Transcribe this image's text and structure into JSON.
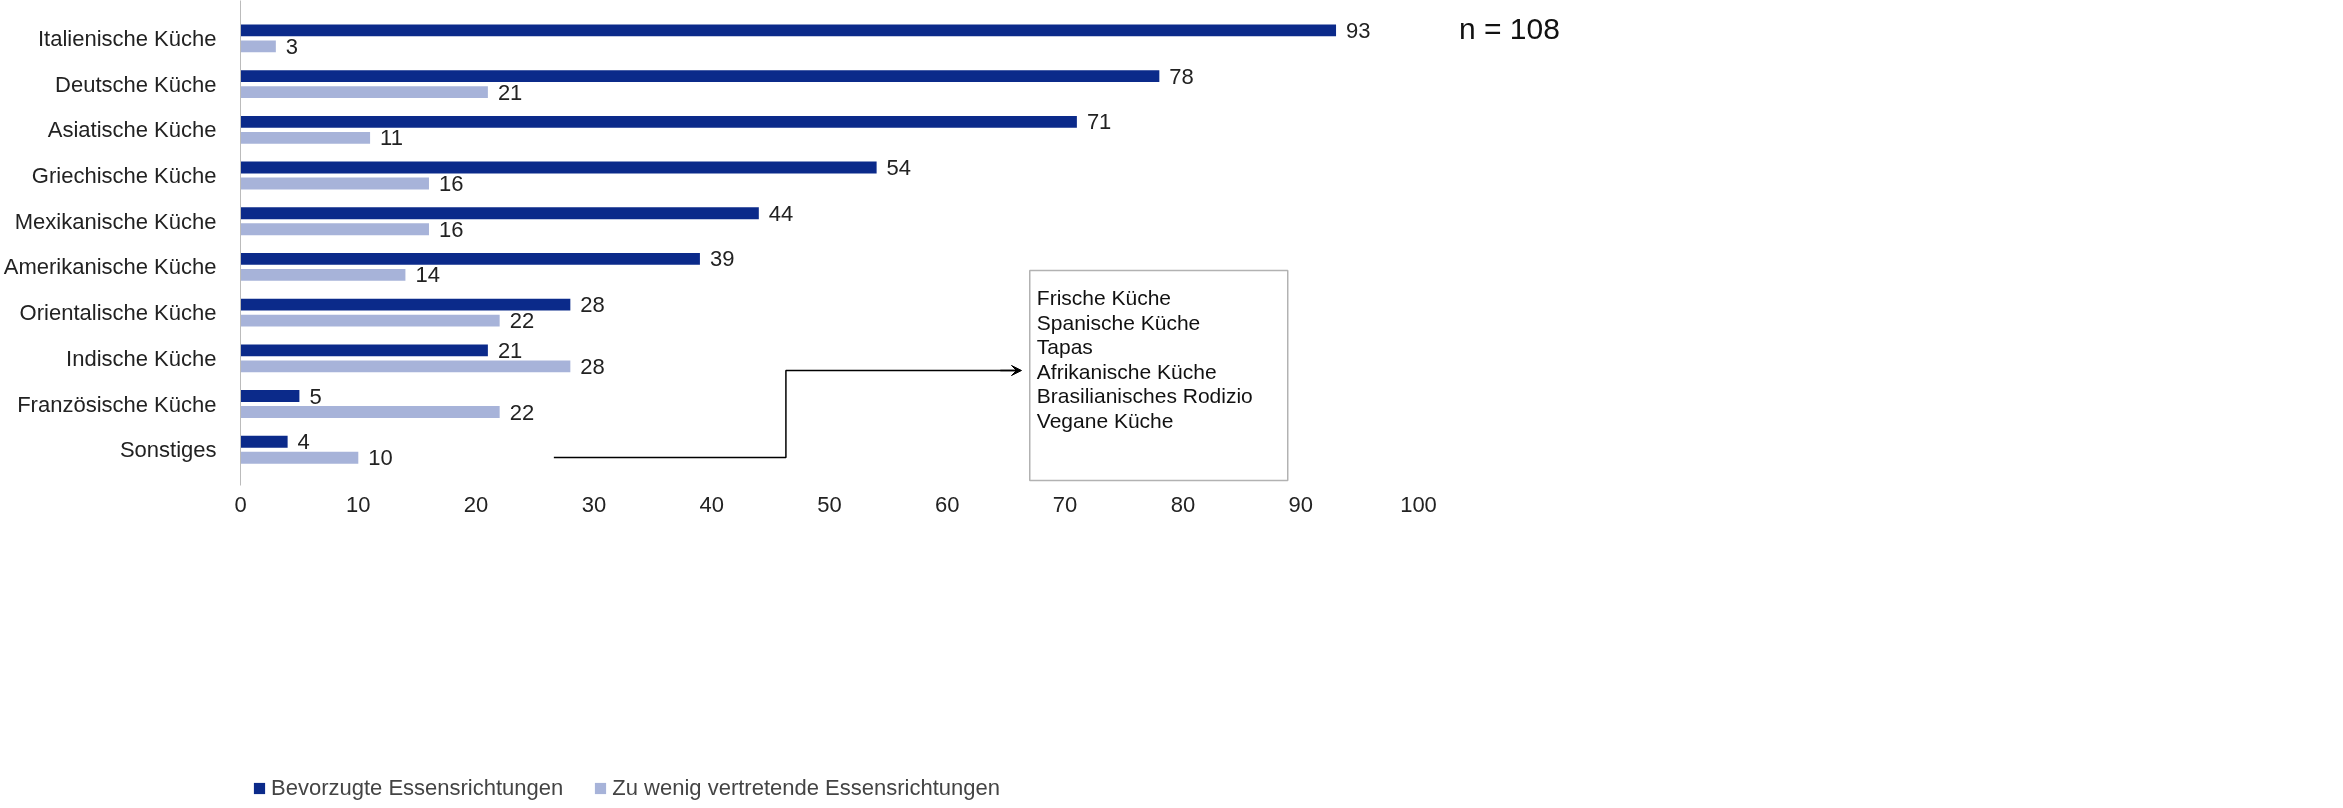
{
  "chart_data": {
    "type": "bar",
    "orientation": "horizontal",
    "categories": [
      "Italienische Küche",
      "Deutsche Küche",
      "Asiatische Küche",
      "Griechische Küche",
      "Mexikanische Küche",
      "Amerikanische Küche",
      "Orientalische Küche",
      "Indische Küche",
      "Französische Küche",
      "Sonstiges"
    ],
    "series": [
      {
        "name": "Bevorzugte Essensrichtungen",
        "color": "#0b2a8a",
        "values": [
          93,
          78,
          71,
          54,
          44,
          39,
          28,
          21,
          5,
          4
        ]
      },
      {
        "name": "Zu wenig vertretende Essensrichtungen",
        "color": "#a7b3d9",
        "values": [
          3,
          21,
          11,
          16,
          16,
          14,
          22,
          28,
          22,
          10
        ]
      }
    ],
    "xlim": [
      0,
      100
    ],
    "xticks": [
      0,
      10,
      20,
      30,
      40,
      50,
      60,
      70,
      80,
      90,
      100
    ],
    "data_labels": true,
    "grid": false,
    "legend": "bottom",
    "annotations": [
      "n = 108",
      "Frische Küche",
      "Spanische Küche",
      "Tapas",
      "Afrikanische Küche",
      "Brasilianisches Rodizio",
      "Vegane Küche"
    ]
  }
}
